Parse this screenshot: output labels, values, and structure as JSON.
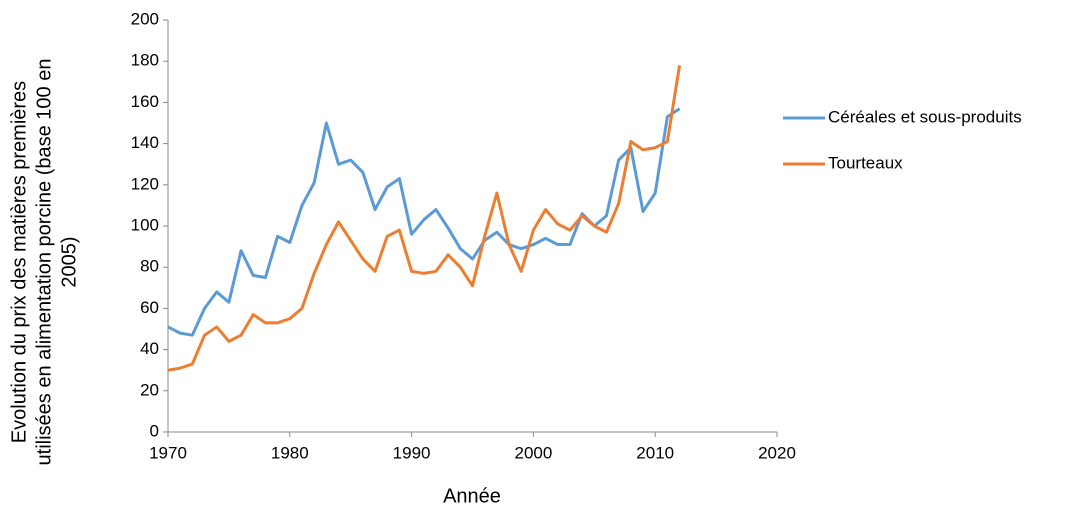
{
  "chart_data": {
    "type": "line",
    "xlabel": "Année",
    "ylabel": "Evolution du prix des matières premières utilisées en alimentation porcine  (base 100 en 2005)",
    "x": [
      1970,
      1971,
      1972,
      1973,
      1974,
      1975,
      1976,
      1977,
      1978,
      1979,
      1980,
      1981,
      1982,
      1983,
      1984,
      1985,
      1986,
      1987,
      1988,
      1989,
      1990,
      1991,
      1992,
      1993,
      1994,
      1995,
      1996,
      1997,
      1998,
      1999,
      2000,
      2001,
      2002,
      2003,
      2004,
      2005,
      2006,
      2007,
      2008,
      2009,
      2010,
      2011,
      2012
    ],
    "series": [
      {
        "name": "Céréales et sous-produits",
        "color": "#5b9bd5",
        "values": [
          51,
          48,
          47,
          60,
          68,
          63,
          88,
          76,
          75,
          95,
          92,
          110,
          121,
          150,
          130,
          132,
          126,
          108,
          119,
          123,
          96,
          103,
          108,
          99,
          89,
          84,
          93,
          97,
          91,
          89,
          91,
          94,
          91,
          91,
          106,
          100,
          105,
          132,
          138,
          107,
          116,
          153,
          157
        ]
      },
      {
        "name": "Tourteaux",
        "color": "#ed7d31",
        "values": [
          30,
          31,
          33,
          47,
          51,
          44,
          47,
          57,
          53,
          53,
          55,
          60,
          77,
          91,
          102,
          93,
          84,
          78,
          95,
          98,
          78,
          77,
          78,
          86,
          80,
          71,
          95,
          116,
          91,
          78,
          98,
          108,
          101,
          98,
          105,
          100,
          97,
          111,
          141,
          137,
          138,
          141,
          178
        ]
      }
    ],
    "xlim": [
      1970,
      2020
    ],
    "xticks": [
      1970,
      1980,
      1990,
      2000,
      2010,
      2020
    ],
    "ylim": [
      0,
      200
    ],
    "yticks": [
      0,
      20,
      40,
      60,
      80,
      100,
      120,
      140,
      160,
      180,
      200
    ],
    "grid": false,
    "legend": "right"
  }
}
